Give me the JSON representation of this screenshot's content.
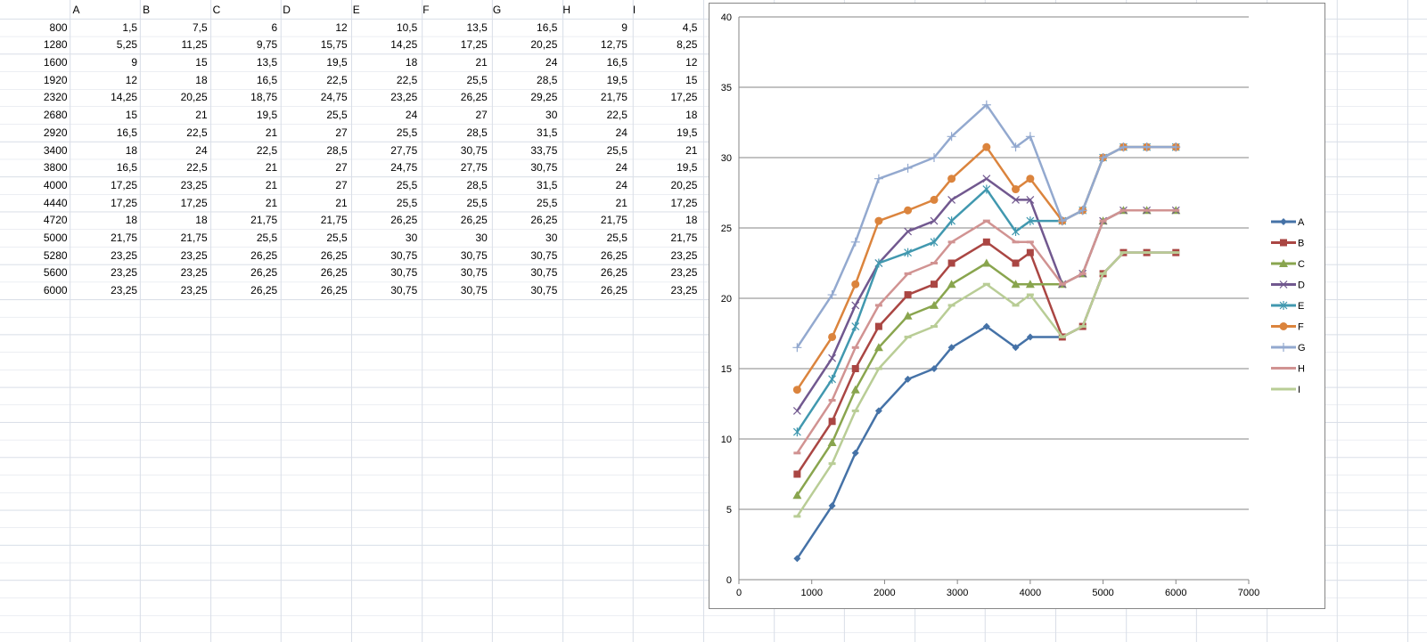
{
  "sheet": {
    "headers": [
      "",
      "A",
      "B",
      "C",
      "D",
      "E",
      "F",
      "G",
      "H",
      "I"
    ],
    "rows": [
      [
        "800",
        "1,5",
        "7,5",
        "6",
        "12",
        "10,5",
        "13,5",
        "16,5",
        "9",
        "4,5"
      ],
      [
        "1280",
        "5,25",
        "11,25",
        "9,75",
        "15,75",
        "14,25",
        "17,25",
        "20,25",
        "12,75",
        "8,25"
      ],
      [
        "1600",
        "9",
        "15",
        "13,5",
        "19,5",
        "18",
        "21",
        "24",
        "16,5",
        "12"
      ],
      [
        "1920",
        "12",
        "18",
        "16,5",
        "22,5",
        "22,5",
        "25,5",
        "28,5",
        "19,5",
        "15"
      ],
      [
        "2320",
        "14,25",
        "20,25",
        "18,75",
        "24,75",
        "23,25",
        "26,25",
        "29,25",
        "21,75",
        "17,25"
      ],
      [
        "2680",
        "15",
        "21",
        "19,5",
        "25,5",
        "24",
        "27",
        "30",
        "22,5",
        "18"
      ],
      [
        "2920",
        "16,5",
        "22,5",
        "21",
        "27",
        "25,5",
        "28,5",
        "31,5",
        "24",
        "19,5"
      ],
      [
        "3400",
        "18",
        "24",
        "22,5",
        "28,5",
        "27,75",
        "30,75",
        "33,75",
        "25,5",
        "21"
      ],
      [
        "3800",
        "16,5",
        "22,5",
        "21",
        "27",
        "24,75",
        "27,75",
        "30,75",
        "24",
        "19,5"
      ],
      [
        "4000",
        "17,25",
        "23,25",
        "21",
        "27",
        "25,5",
        "28,5",
        "31,5",
        "24",
        "20,25"
      ],
      [
        "4440",
        "17,25",
        "17,25",
        "21",
        "21",
        "25,5",
        "25,5",
        "25,5",
        "21",
        "17,25"
      ],
      [
        "4720",
        "18",
        "18",
        "21,75",
        "21,75",
        "26,25",
        "26,25",
        "26,25",
        "21,75",
        "18"
      ],
      [
        "5000",
        "21,75",
        "21,75",
        "25,5",
        "25,5",
        "30",
        "30",
        "30",
        "25,5",
        "21,75"
      ],
      [
        "5280",
        "23,25",
        "23,25",
        "26,25",
        "26,25",
        "30,75",
        "30,75",
        "30,75",
        "26,25",
        "23,25"
      ],
      [
        "5600",
        "23,25",
        "23,25",
        "26,25",
        "26,25",
        "30,75",
        "30,75",
        "30,75",
        "26,25",
        "23,25"
      ],
      [
        "6000",
        "23,25",
        "23,25",
        "26,25",
        "26,25",
        "30,75",
        "30,75",
        "30,75",
        "26,25",
        "23,25"
      ]
    ]
  },
  "chart_data": {
    "type": "line",
    "title": "",
    "xlabel": "",
    "ylabel": "",
    "xlim": [
      0,
      7000
    ],
    "ylim": [
      0,
      40
    ],
    "xticks": [
      0,
      1000,
      2000,
      3000,
      4000,
      5000,
      6000,
      7000
    ],
    "yticks": [
      0,
      5,
      10,
      15,
      20,
      25,
      30,
      35,
      40
    ],
    "grid": "horizontal",
    "legend_placement": "right",
    "x": [
      800,
      1280,
      1600,
      1920,
      2320,
      2680,
      2920,
      3400,
      3800,
      4000,
      4440,
      4720,
      5000,
      5280,
      5600,
      6000
    ],
    "series": [
      {
        "name": "A",
        "color": "#4572a7",
        "marker": "diamond",
        "values": [
          1.5,
          5.25,
          9,
          12,
          14.25,
          15,
          16.5,
          18,
          16.5,
          17.25,
          17.25,
          18,
          21.75,
          23.25,
          23.25,
          23.25
        ]
      },
      {
        "name": "B",
        "color": "#aa4643",
        "marker": "square",
        "values": [
          7.5,
          11.25,
          15,
          18,
          20.25,
          21,
          22.5,
          24,
          22.5,
          23.25,
          17.25,
          18,
          21.75,
          23.25,
          23.25,
          23.25
        ]
      },
      {
        "name": "C",
        "color": "#89a54e",
        "marker": "triangle",
        "values": [
          6,
          9.75,
          13.5,
          16.5,
          18.75,
          19.5,
          21,
          22.5,
          21,
          21,
          21,
          21.75,
          25.5,
          26.25,
          26.25,
          26.25
        ]
      },
      {
        "name": "D",
        "color": "#71588f",
        "marker": "x",
        "values": [
          12,
          15.75,
          19.5,
          22.5,
          24.75,
          25.5,
          27,
          28.5,
          27,
          27,
          21,
          21.75,
          25.5,
          26.25,
          26.25,
          26.25
        ]
      },
      {
        "name": "E",
        "color": "#4198af",
        "marker": "star",
        "values": [
          10.5,
          14.25,
          18,
          22.5,
          23.25,
          24,
          25.5,
          27.75,
          24.75,
          25.5,
          25.5,
          26.25,
          30,
          30.75,
          30.75,
          30.75
        ]
      },
      {
        "name": "F",
        "color": "#db843d",
        "marker": "circle",
        "values": [
          13.5,
          17.25,
          21,
          25.5,
          26.25,
          27,
          28.5,
          30.75,
          27.75,
          28.5,
          25.5,
          26.25,
          30,
          30.75,
          30.75,
          30.75
        ]
      },
      {
        "name": "G",
        "color": "#93a9cf",
        "marker": "plus",
        "values": [
          16.5,
          20.25,
          24,
          28.5,
          29.25,
          30,
          31.5,
          33.75,
          30.75,
          31.5,
          25.5,
          26.25,
          30,
          30.75,
          30.75,
          30.75
        ]
      },
      {
        "name": "H",
        "color": "#d19392",
        "marker": "dash",
        "values": [
          9,
          12.75,
          16.5,
          19.5,
          21.75,
          22.5,
          24,
          25.5,
          24,
          24,
          21,
          21.75,
          25.5,
          26.25,
          26.25,
          26.25
        ]
      },
      {
        "name": "I",
        "color": "#b9cd96",
        "marker": "dash",
        "values": [
          4.5,
          8.25,
          12,
          15,
          17.25,
          18,
          19.5,
          21,
          19.5,
          20.25,
          17.25,
          18,
          21.75,
          23.25,
          23.25,
          23.25
        ]
      }
    ]
  }
}
